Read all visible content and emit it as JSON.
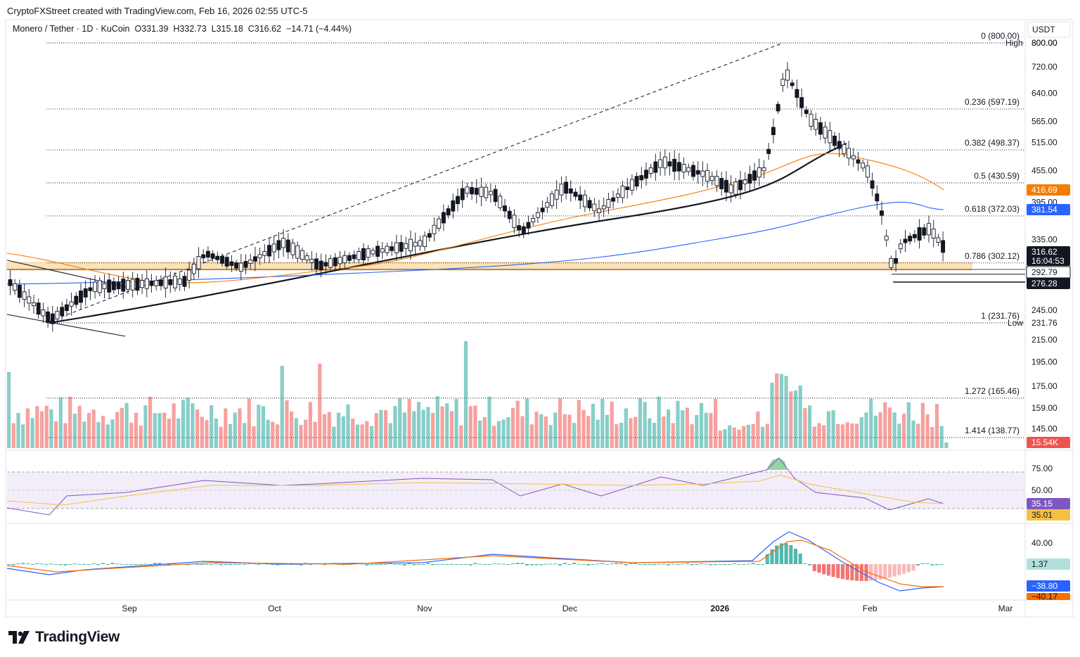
{
  "header": {
    "credit": "CryptoFXStreet created with TradingView.com, Feb 16, 2026 02:55 UTC-5",
    "symbol_line": "Monero / Tether · 1D · KuCoin",
    "open": "O331.39",
    "high": "H332.73",
    "low": "L315.18",
    "close": "C316.62",
    "change": "−14.71 (−4.44%)"
  },
  "brand": {
    "name": "TradingView"
  },
  "chart_data": {
    "type": "candlestick",
    "currency": "USDT",
    "price_axis_ticks": [
      "800.00",
      "720.00",
      "640.00",
      "565.00",
      "515.00",
      "455.00",
      "395.00",
      "335.00",
      "245.00",
      "215.00",
      "195.00",
      "175.00",
      "159.00",
      "145.00"
    ],
    "price_axis_values": [
      800,
      720,
      640,
      565,
      515,
      455,
      395,
      335,
      245,
      215,
      195,
      175,
      159,
      145
    ],
    "time_axis_ticks": [
      {
        "label": "Sep",
        "date": "2025-09-01"
      },
      {
        "label": "Oct",
        "date": "2025-10-01"
      },
      {
        "label": "Nov",
        "date": "2025-11-01"
      },
      {
        "label": "Dec",
        "date": "2025-12-01"
      },
      {
        "label": "2026",
        "date": "2026-01-01"
      },
      {
        "label": "Feb",
        "date": "2026-02-01"
      },
      {
        "label": "Mar",
        "date": "2026-03-01"
      }
    ],
    "fibonacci": [
      {
        "label": "0 (800.00)",
        "value": 800.0
      },
      {
        "label": "0.236 (597.19)",
        "value": 597.19
      },
      {
        "label": "0.382 (498.37)",
        "value": 498.37
      },
      {
        "label": "0.5 (430.59)",
        "value": 430.59
      },
      {
        "label": "0.618 (372.03)",
        "value": 372.03
      },
      {
        "label": "0.786 (302.12)",
        "value": 302.12
      },
      {
        "label": "1 (231.76)",
        "value": 231.76
      },
      {
        "label": "1.272 (165.46)",
        "value": 165.46
      },
      {
        "label": "1.414 (138.77)",
        "value": 138.77
      }
    ],
    "high_label": {
      "text": "High",
      "value": "800.00"
    },
    "low_label": {
      "text": "Low",
      "value": "231.76"
    },
    "price_tags": {
      "ema50": {
        "value": "416.69",
        "color": "#f57c00"
      },
      "ema200": {
        "value": "381.54",
        "color": "#2962ff"
      },
      "last": {
        "value": "316.62",
        "countdown": "16:04:53",
        "color": "#131722"
      },
      "level_a": {
        "value": "292.79"
      },
      "level_b": {
        "value": "276.28"
      }
    },
    "volume": {
      "last": "15.54K",
      "up_color": "#26a69a",
      "down_color": "#ef5350"
    },
    "rsi": {
      "ticks": [
        "75.00",
        "50.00"
      ],
      "rsi": "35.15",
      "signal": "35.01",
      "line_color": "#7e57c2",
      "signal_color": "#f5c043"
    },
    "macd": {
      "ticks": [
        "40.00"
      ],
      "histogram": "1.37",
      "macd": "−38.80",
      "signal": "−40.17",
      "macd_color": "#2962ff",
      "signal_color": "#ff6d00"
    },
    "support_zone": {
      "low": 292.79,
      "high": 302.12
    },
    "swing_high": 800.0,
    "swing_low": 231.76
  }
}
